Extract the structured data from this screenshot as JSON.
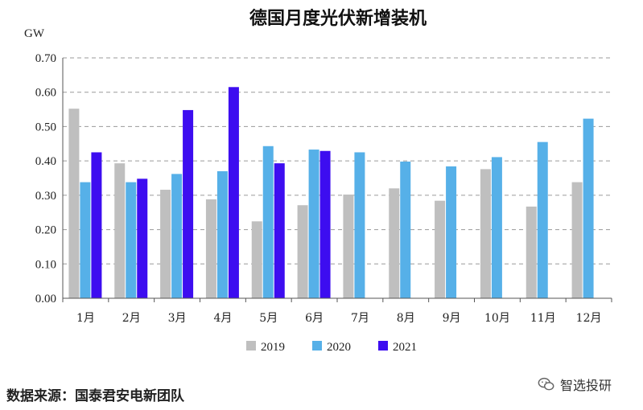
{
  "chart_data": {
    "type": "bar",
    "title": "德国月度光伏新增装机",
    "ylabel": "GW",
    "xlabel": "",
    "ylim": [
      0,
      0.7
    ],
    "yticks": [
      "0.00",
      "0.10",
      "0.20",
      "0.30",
      "0.40",
      "0.50",
      "0.60",
      "0.70"
    ],
    "ytick_values": [
      0,
      0.1,
      0.2,
      0.3,
      0.4,
      0.5,
      0.6,
      0.7
    ],
    "grid": true,
    "legend_position": "bottom",
    "categories": [
      "1月",
      "2月",
      "3月",
      "4月",
      "5月",
      "6月",
      "7月",
      "8月",
      "9月",
      "10月",
      "11月",
      "12月"
    ],
    "series": [
      {
        "name": "2019",
        "color": "#bfbfbf",
        "values": [
          0.552,
          0.393,
          0.316,
          0.288,
          0.224,
          0.271,
          0.302,
          0.32,
          0.284,
          0.376,
          0.267,
          0.338
        ]
      },
      {
        "name": "2020",
        "color": "#56b0e8",
        "values": [
          0.338,
          0.338,
          0.362,
          0.37,
          0.443,
          0.433,
          0.425,
          0.398,
          0.384,
          0.411,
          0.455,
          0.523
        ]
      },
      {
        "name": "2021",
        "color": "#3d0df0",
        "values": [
          0.425,
          0.348,
          0.548,
          0.615,
          0.393,
          0.429,
          null,
          null,
          null,
          null,
          null,
          null
        ]
      }
    ]
  },
  "footer": {
    "source": "数据来源：国泰君安电新团队",
    "brand": "智选投研"
  }
}
